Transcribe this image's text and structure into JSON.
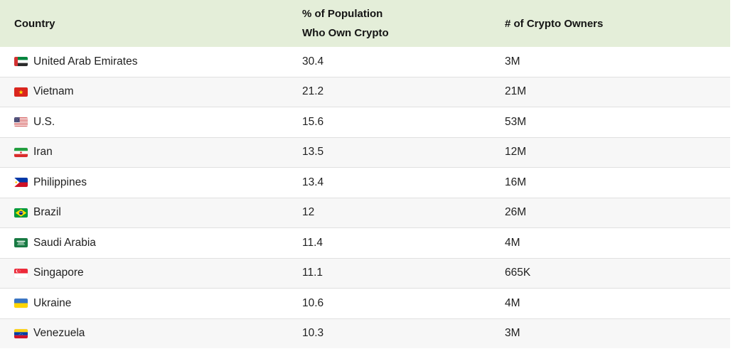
{
  "header": {
    "country": "Country",
    "pct_line1": "% of Population",
    "pct_line2": "Who Own Crypto",
    "owners": "# of Crypto Owners"
  },
  "rows": [
    {
      "country": "United Arab Emirates",
      "flag": "ae",
      "pct": "30.4",
      "owners": "3M"
    },
    {
      "country": "Vietnam",
      "flag": "vn",
      "pct": "21.2",
      "owners": "21M"
    },
    {
      "country": "U.S.",
      "flag": "us",
      "pct": "15.6",
      "owners": "53M"
    },
    {
      "country": "Iran",
      "flag": "ir",
      "pct": "13.5",
      "owners": "12M"
    },
    {
      "country": "Philippines",
      "flag": "ph",
      "pct": "13.4",
      "owners": "16M"
    },
    {
      "country": "Brazil",
      "flag": "br",
      "pct": "12",
      "owners": "26M"
    },
    {
      "country": "Saudi Arabia",
      "flag": "sa",
      "pct": "11.4",
      "owners": "4M"
    },
    {
      "country": "Singapore",
      "flag": "sg",
      "pct": "11.1",
      "owners": "665K"
    },
    {
      "country": "Ukraine",
      "flag": "ua",
      "pct": "10.6",
      "owners": "4M"
    },
    {
      "country": "Venezuela",
      "flag": "ve",
      "pct": "10.3",
      "owners": "3M"
    }
  ],
  "colors": {
    "header_bg": "#e4eed9",
    "row_alt_bg": "#f7f7f7",
    "divider": "#e0e0e0",
    "header_text": "#141414",
    "body_text": "#212121"
  },
  "chart_data": {
    "type": "table",
    "columns": [
      "Country",
      "% of Population Who Own Crypto",
      "# of Crypto Owners"
    ],
    "rows": [
      [
        "United Arab Emirates",
        30.4,
        "3M"
      ],
      [
        "Vietnam",
        21.2,
        "21M"
      ],
      [
        "U.S.",
        15.6,
        "53M"
      ],
      [
        "Iran",
        13.5,
        "12M"
      ],
      [
        "Philippines",
        13.4,
        "16M"
      ],
      [
        "Brazil",
        12,
        "26M"
      ],
      [
        "Saudi Arabia",
        11.4,
        "4M"
      ],
      [
        "Singapore",
        11.1,
        "665K"
      ],
      [
        "Ukraine",
        10.6,
        "4M"
      ],
      [
        "Venezuela",
        10.3,
        "3M"
      ]
    ],
    "layout_hints": {
      "header_background": "#e4eed9",
      "zebra_striping": true,
      "flag_icons": true
    }
  }
}
